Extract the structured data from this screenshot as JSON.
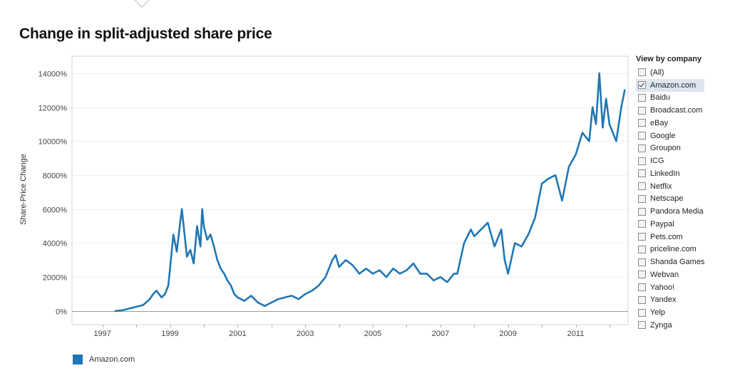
{
  "page": {
    "title": "Change in split-adjusted share price"
  },
  "legend": {
    "label": "Amazon.com",
    "color": "#1f77b4"
  },
  "filter": {
    "title": "View by company",
    "options": [
      {
        "label": "(All)",
        "checked": false
      },
      {
        "label": "Amazon.com",
        "checked": true
      },
      {
        "label": "Baidu",
        "checked": false
      },
      {
        "label": "Broadcast.com",
        "checked": false
      },
      {
        "label": "eBay",
        "checked": false
      },
      {
        "label": "Google",
        "checked": false
      },
      {
        "label": "Groupon",
        "checked": false
      },
      {
        "label": "ICG",
        "checked": false
      },
      {
        "label": "LinkedIn",
        "checked": false
      },
      {
        "label": "Netflix",
        "checked": false
      },
      {
        "label": "Netscape",
        "checked": false
      },
      {
        "label": "Pandora Media",
        "checked": false
      },
      {
        "label": "Paypal",
        "checked": false
      },
      {
        "label": "Pets.com",
        "checked": false
      },
      {
        "label": "priceline.com",
        "checked": false
      },
      {
        "label": "Shanda Games",
        "checked": false
      },
      {
        "label": "Webvan",
        "checked": false
      },
      {
        "label": "Yahoo!",
        "checked": false
      },
      {
        "label": "Yandex",
        "checked": false
      },
      {
        "label": "Yelp",
        "checked": false
      },
      {
        "label": "Zynga",
        "checked": false
      }
    ]
  },
  "chart_data": {
    "type": "line",
    "title": "Change in split-adjusted share price",
    "xlabel": "",
    "ylabel": "Share-Price Change",
    "xlim": [
      1996.1,
      2012.55
    ],
    "ylim": [
      -800,
      15000
    ],
    "x_ticks": [
      1997,
      1999,
      2001,
      2003,
      2005,
      2007,
      2009,
      2011
    ],
    "x_tick_labels": [
      "1997",
      "1999",
      "2001",
      "2003",
      "2005",
      "2007",
      "2009",
      "2011"
    ],
    "y_ticks": [
      0,
      2000,
      4000,
      6000,
      8000,
      10000,
      12000,
      14000
    ],
    "y_tick_labels": [
      "0%",
      "2000%",
      "4000%",
      "6000%",
      "8000%",
      "10000%",
      "12000%",
      "14000%"
    ],
    "grid": true,
    "legend_position": "bottom-left",
    "series": [
      {
        "name": "Amazon.com",
        "color": "#1f77b4",
        "x": [
          1997.38,
          1997.6,
          1997.8,
          1998.0,
          1998.2,
          1998.4,
          1998.5,
          1998.6,
          1998.75,
          1998.85,
          1998.95,
          1999.0,
          1999.1,
          1999.2,
          1999.3,
          1999.35,
          1999.5,
          1999.6,
          1999.7,
          1999.8,
          1999.9,
          1999.95,
          2000.0,
          2000.1,
          2000.2,
          2000.3,
          2000.4,
          2000.5,
          2000.6,
          2000.7,
          2000.8,
          2000.9,
          2001.0,
          2001.2,
          2001.4,
          2001.6,
          2001.8,
          2001.9,
          2002.0,
          2002.2,
          2002.4,
          2002.6,
          2002.8,
          2003.0,
          2003.2,
          2003.4,
          2003.6,
          2003.8,
          2003.9,
          2004.0,
          2004.2,
          2004.4,
          2004.6,
          2004.8,
          2005.0,
          2005.2,
          2005.4,
          2005.6,
          2005.8,
          2006.0,
          2006.2,
          2006.4,
          2006.6,
          2006.8,
          2007.0,
          2007.2,
          2007.4,
          2007.5,
          2007.7,
          2007.9,
          2008.0,
          2008.2,
          2008.4,
          2008.6,
          2008.8,
          2008.9,
          2009.0,
          2009.2,
          2009.4,
          2009.6,
          2009.8,
          2010.0,
          2010.2,
          2010.4,
          2010.6,
          2010.8,
          2011.0,
          2011.2,
          2011.4,
          2011.5,
          2011.6,
          2011.7,
          2011.8,
          2011.9,
          2012.0,
          2012.2,
          2012.35,
          2012.45
        ],
        "y": [
          0,
          50,
          150,
          250,
          350,
          700,
          1000,
          1200,
          800,
          1000,
          1500,
          2500,
          4500,
          3500,
          5200,
          6000,
          3200,
          3600,
          2800,
          5000,
          3800,
          6000,
          5000,
          4200,
          4500,
          3800,
          3000,
          2500,
          2200,
          1800,
          1500,
          1000,
          800,
          600,
          900,
          500,
          300,
          400,
          500,
          700,
          800,
          900,
          700,
          1000,
          1200,
          1500,
          2000,
          3000,
          3300,
          2600,
          3000,
          2700,
          2200,
          2500,
          2200,
          2400,
          2000,
          2500,
          2200,
          2400,
          2800,
          2200,
          2200,
          1800,
          2000,
          1700,
          2200,
          2200,
          4000,
          4800,
          4400,
          4800,
          5200,
          3800,
          4800,
          3000,
          2200,
          4000,
          3800,
          4500,
          5500,
          7500,
          7800,
          8000,
          6500,
          8500,
          9200,
          10500,
          10000,
          12000,
          11000,
          14000,
          10800,
          12500,
          11000,
          10000,
          12000,
          13000
        ]
      }
    ]
  }
}
